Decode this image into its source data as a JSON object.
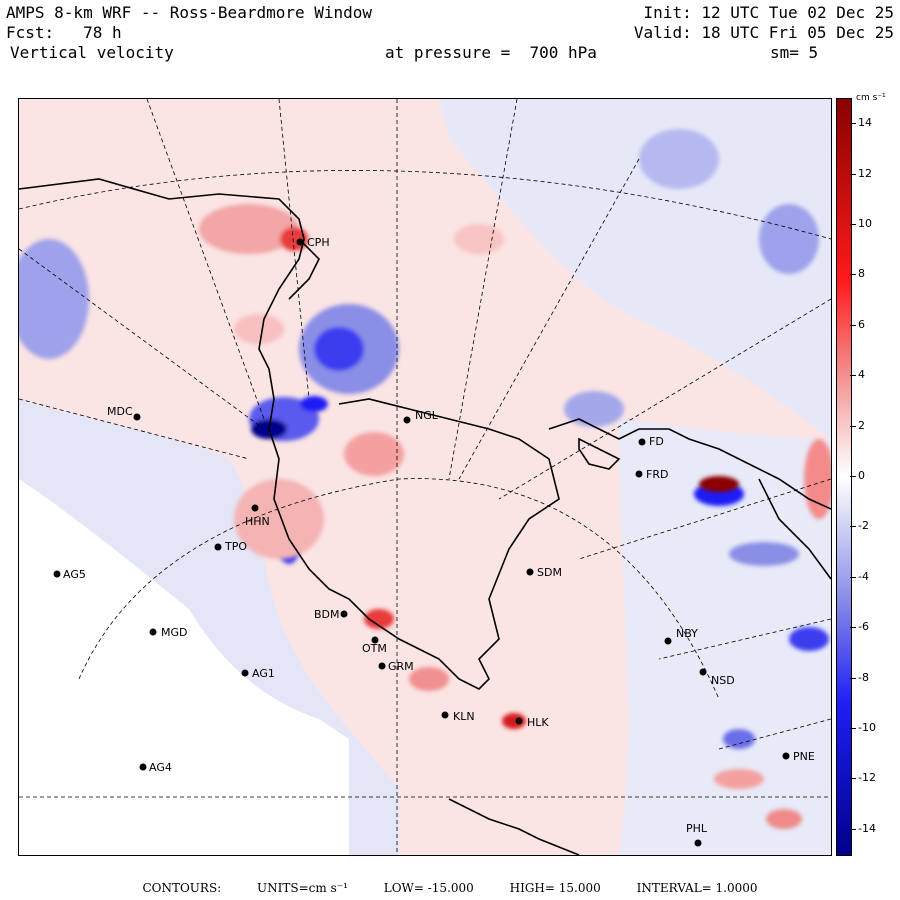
{
  "header": {
    "title": "AMPS 8-km WRF -- Ross-Beardmore Window",
    "init": "Init: 12 UTC Tue 02 Dec 25",
    "forecast": "Fcst:   78 h",
    "valid": "Valid: 18 UTC Fri 05 Dec 25",
    "field": "Vertical velocity",
    "level": "at pressure =  700 hPa",
    "smoothing": "sm= 5"
  },
  "colorbar": {
    "units": "cm s⁻¹",
    "labels": [
      "14",
      "12",
      "10",
      "8",
      "6",
      "4",
      "2",
      "0",
      "-2",
      "-4",
      "-6",
      "-8",
      "-10",
      "-12",
      "-14"
    ],
    "colors": {
      "max": "#8b0000",
      "high": "#ff1a1a",
      "mid_high": "#f48b8b",
      "low_pos": "#fbe1e1",
      "zero": "#ffffff",
      "low_neg": "#e2e4f8",
      "mid_low": "#8a8ee6",
      "low": "#1e1ef5",
      "min": "#00008b"
    }
  },
  "stations": [
    {
      "id": "CPH",
      "label": "CPH"
    },
    {
      "id": "MDC",
      "label": "MDC"
    },
    {
      "id": "NGL",
      "label": "NGL"
    },
    {
      "id": "FD",
      "label": "FD"
    },
    {
      "id": "FRD",
      "label": "FRD"
    },
    {
      "id": "HHN",
      "label": "HHN"
    },
    {
      "id": "TPO",
      "label": "TPO"
    },
    {
      "id": "AG5",
      "label": "AG5"
    },
    {
      "id": "SDM",
      "label": "SDM"
    },
    {
      "id": "BDM",
      "label": "BDM"
    },
    {
      "id": "MGD",
      "label": "MGD"
    },
    {
      "id": "OTM",
      "label": "OTM"
    },
    {
      "id": "NBY",
      "label": "NBY"
    },
    {
      "id": "GRM",
      "label": "GRM"
    },
    {
      "id": "AG1",
      "label": "AG1"
    },
    {
      "id": "NSD",
      "label": "NSD"
    },
    {
      "id": "KLN",
      "label": "KLN"
    },
    {
      "id": "HLK",
      "label": "HLK"
    },
    {
      "id": "AG4",
      "label": "AG4"
    },
    {
      "id": "PNE",
      "label": "PNE"
    },
    {
      "id": "PHL",
      "label": "PHL"
    }
  ],
  "footer": {
    "contours": "CONTOURS:",
    "units": "UNITS=cm s⁻¹",
    "low": "LOW= -15.000",
    "high": "HIGH=  15.000",
    "interval": "INTERVAL=   1.0000"
  }
}
